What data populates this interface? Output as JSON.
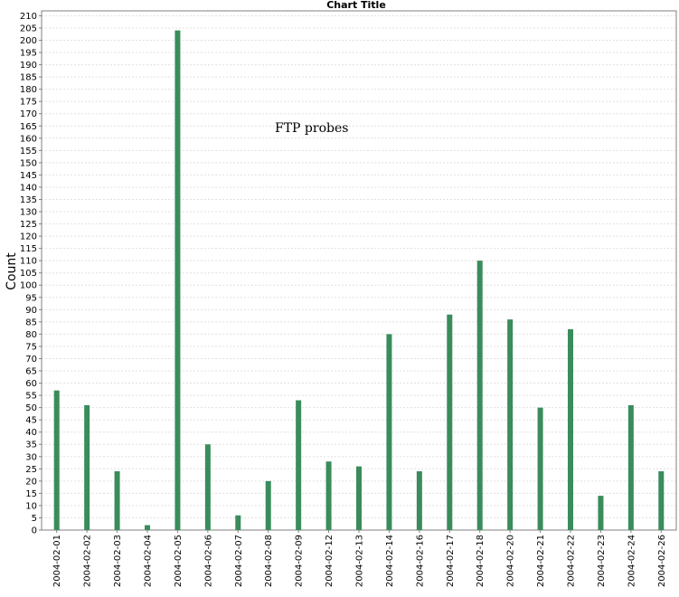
{
  "chart_data": {
    "type": "bar",
    "title": "Chart Title",
    "xlabel": "",
    "ylabel": "Count",
    "ylim": [
      0,
      212
    ],
    "ytick_step": 5,
    "ytick_max": 210,
    "grid": true,
    "legend": "none",
    "annotation": "FTP probes",
    "bar_color": "#3a8c5c",
    "categories": [
      "2004-02-01",
      "2004-02-02",
      "2004-02-03",
      "2004-02-04",
      "2004-02-05",
      "2004-02-06",
      "2004-02-07",
      "2004-02-08",
      "2004-02-09",
      "2004-02-12",
      "2004-02-13",
      "2004-02-14",
      "2004-02-16",
      "2004-02-17",
      "2004-02-18",
      "2004-02-20",
      "2004-02-21",
      "2004-02-22",
      "2004-02-23",
      "2004-02-24",
      "2004-02-26"
    ],
    "values": [
      57,
      51,
      24,
      2,
      204,
      35,
      6,
      20,
      53,
      28,
      26,
      80,
      24,
      88,
      110,
      86,
      50,
      82,
      14,
      51,
      24
    ]
  }
}
